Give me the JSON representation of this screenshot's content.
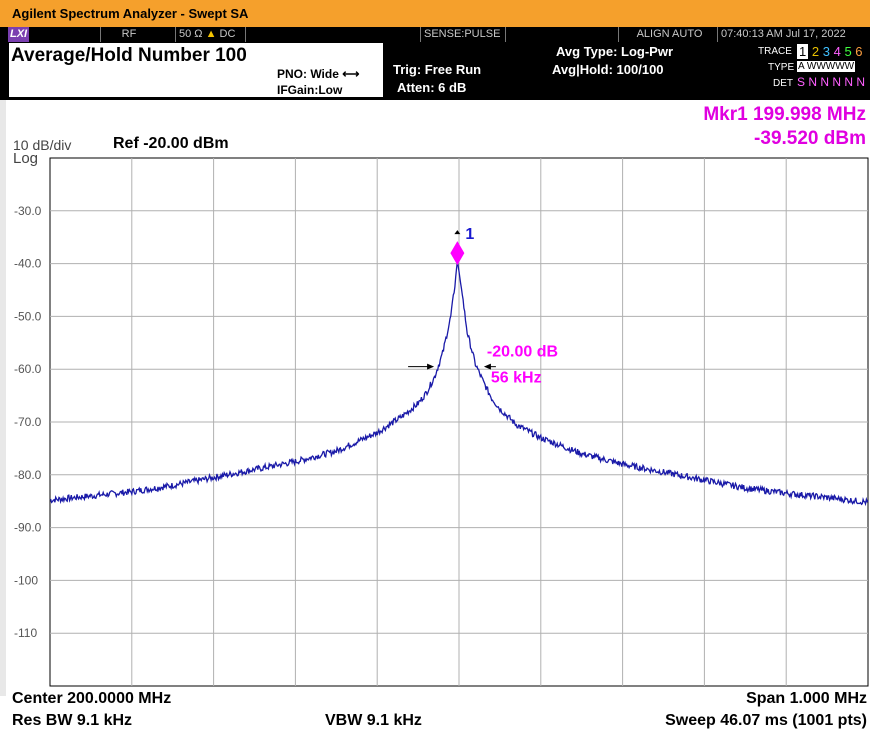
{
  "window_title": "Agilent Spectrum Analyzer - Swept SA",
  "status": {
    "logo": "LXI",
    "input": "RF",
    "coupling_impedance": "50 Ω",
    "coupling_mode": "DC",
    "sense": "SENSE:PULSE",
    "align": "ALIGN AUTO",
    "datetime": "07:40:13 AM Jul 17, 2022"
  },
  "header": {
    "title": "Average/Hold Number 100",
    "pno": "PNO: Wide",
    "ifgain": "IFGain:Low",
    "trig": "Trig: Free Run",
    "atten": "Atten: 6 dB",
    "avg_type": "Avg Type: Log-Pwr",
    "avg_hold": "Avg|Hold: 100/100"
  },
  "trace_panel": {
    "trace_label": "TRACE",
    "trace_numbers": [
      "1",
      "2",
      "3",
      "4",
      "5",
      "6"
    ],
    "type_label": "TYPE",
    "type_value": "A WWWWW",
    "det_label": "DET",
    "det_value": "S N N N N N"
  },
  "marker": {
    "freq": "Mkr1 199.998 MHz",
    "amp": "-39.520 dBm",
    "label": "1",
    "ndb": "-20.00 dB",
    "bw": "56 kHz"
  },
  "scale": {
    "per_div": "10 dB/div",
    "mode": "Log",
    "ref": "Ref -20.00 dBm"
  },
  "footer": {
    "center": "Center 200.0000 MHz",
    "span": "Span 1.000 MHz",
    "rbw": "Res BW 9.1 kHz",
    "vbw": "VBW 9.1 kHz",
    "sweep": "Sweep  46.07 ms (1001 pts)"
  },
  "colors": {
    "trace": "#1a1aa8",
    "marker": "#ff00ff",
    "accent_title": "#f5a02c",
    "grid": "#b0b0b0"
  },
  "chart_data": {
    "type": "line",
    "xlabel": "",
    "ylabel": "",
    "center_mhz": 200.0,
    "span_mhz": 1.0,
    "ylim": [
      -120,
      -20
    ],
    "y_tick_labels": [
      "-30.0",
      "-40.0",
      "-50.0",
      "-60.0",
      "-70.0",
      "-80.0",
      "-90.0",
      "-100",
      "-110"
    ],
    "grid": true,
    "series": [
      {
        "x": [
          199.5,
          199.55,
          199.6,
          199.65,
          199.7,
          199.75,
          199.8,
          199.85,
          199.9,
          199.93,
          199.95,
          199.96,
          199.97,
          199.98,
          199.99,
          199.995,
          199.998,
          200.0,
          200.005,
          200.01,
          200.02,
          200.03,
          200.04,
          200.05,
          200.07,
          200.1,
          200.15,
          200.2,
          200.25,
          200.3,
          200.35,
          200.4,
          200.45,
          200.5
        ],
        "y": [
          -84.8,
          -84.0,
          -83.2,
          -82.0,
          -80.5,
          -79.0,
          -77.5,
          -75.5,
          -72.0,
          -69.0,
          -66.5,
          -64.5,
          -61.5,
          -57.0,
          -50.0,
          -44.0,
          -39.5,
          -41.5,
          -47.0,
          -53.0,
          -59.0,
          -62.5,
          -65.5,
          -67.5,
          -70.5,
          -73.0,
          -76.0,
          -78.0,
          -79.5,
          -81.0,
          -82.5,
          -83.5,
          -84.3,
          -85.2
        ]
      }
    ],
    "marker": {
      "x": 199.998,
      "y": -39.52
    },
    "ndb_arrows": {
      "left_x": 199.972,
      "right_x": 200.028,
      "y": -59.52
    }
  }
}
